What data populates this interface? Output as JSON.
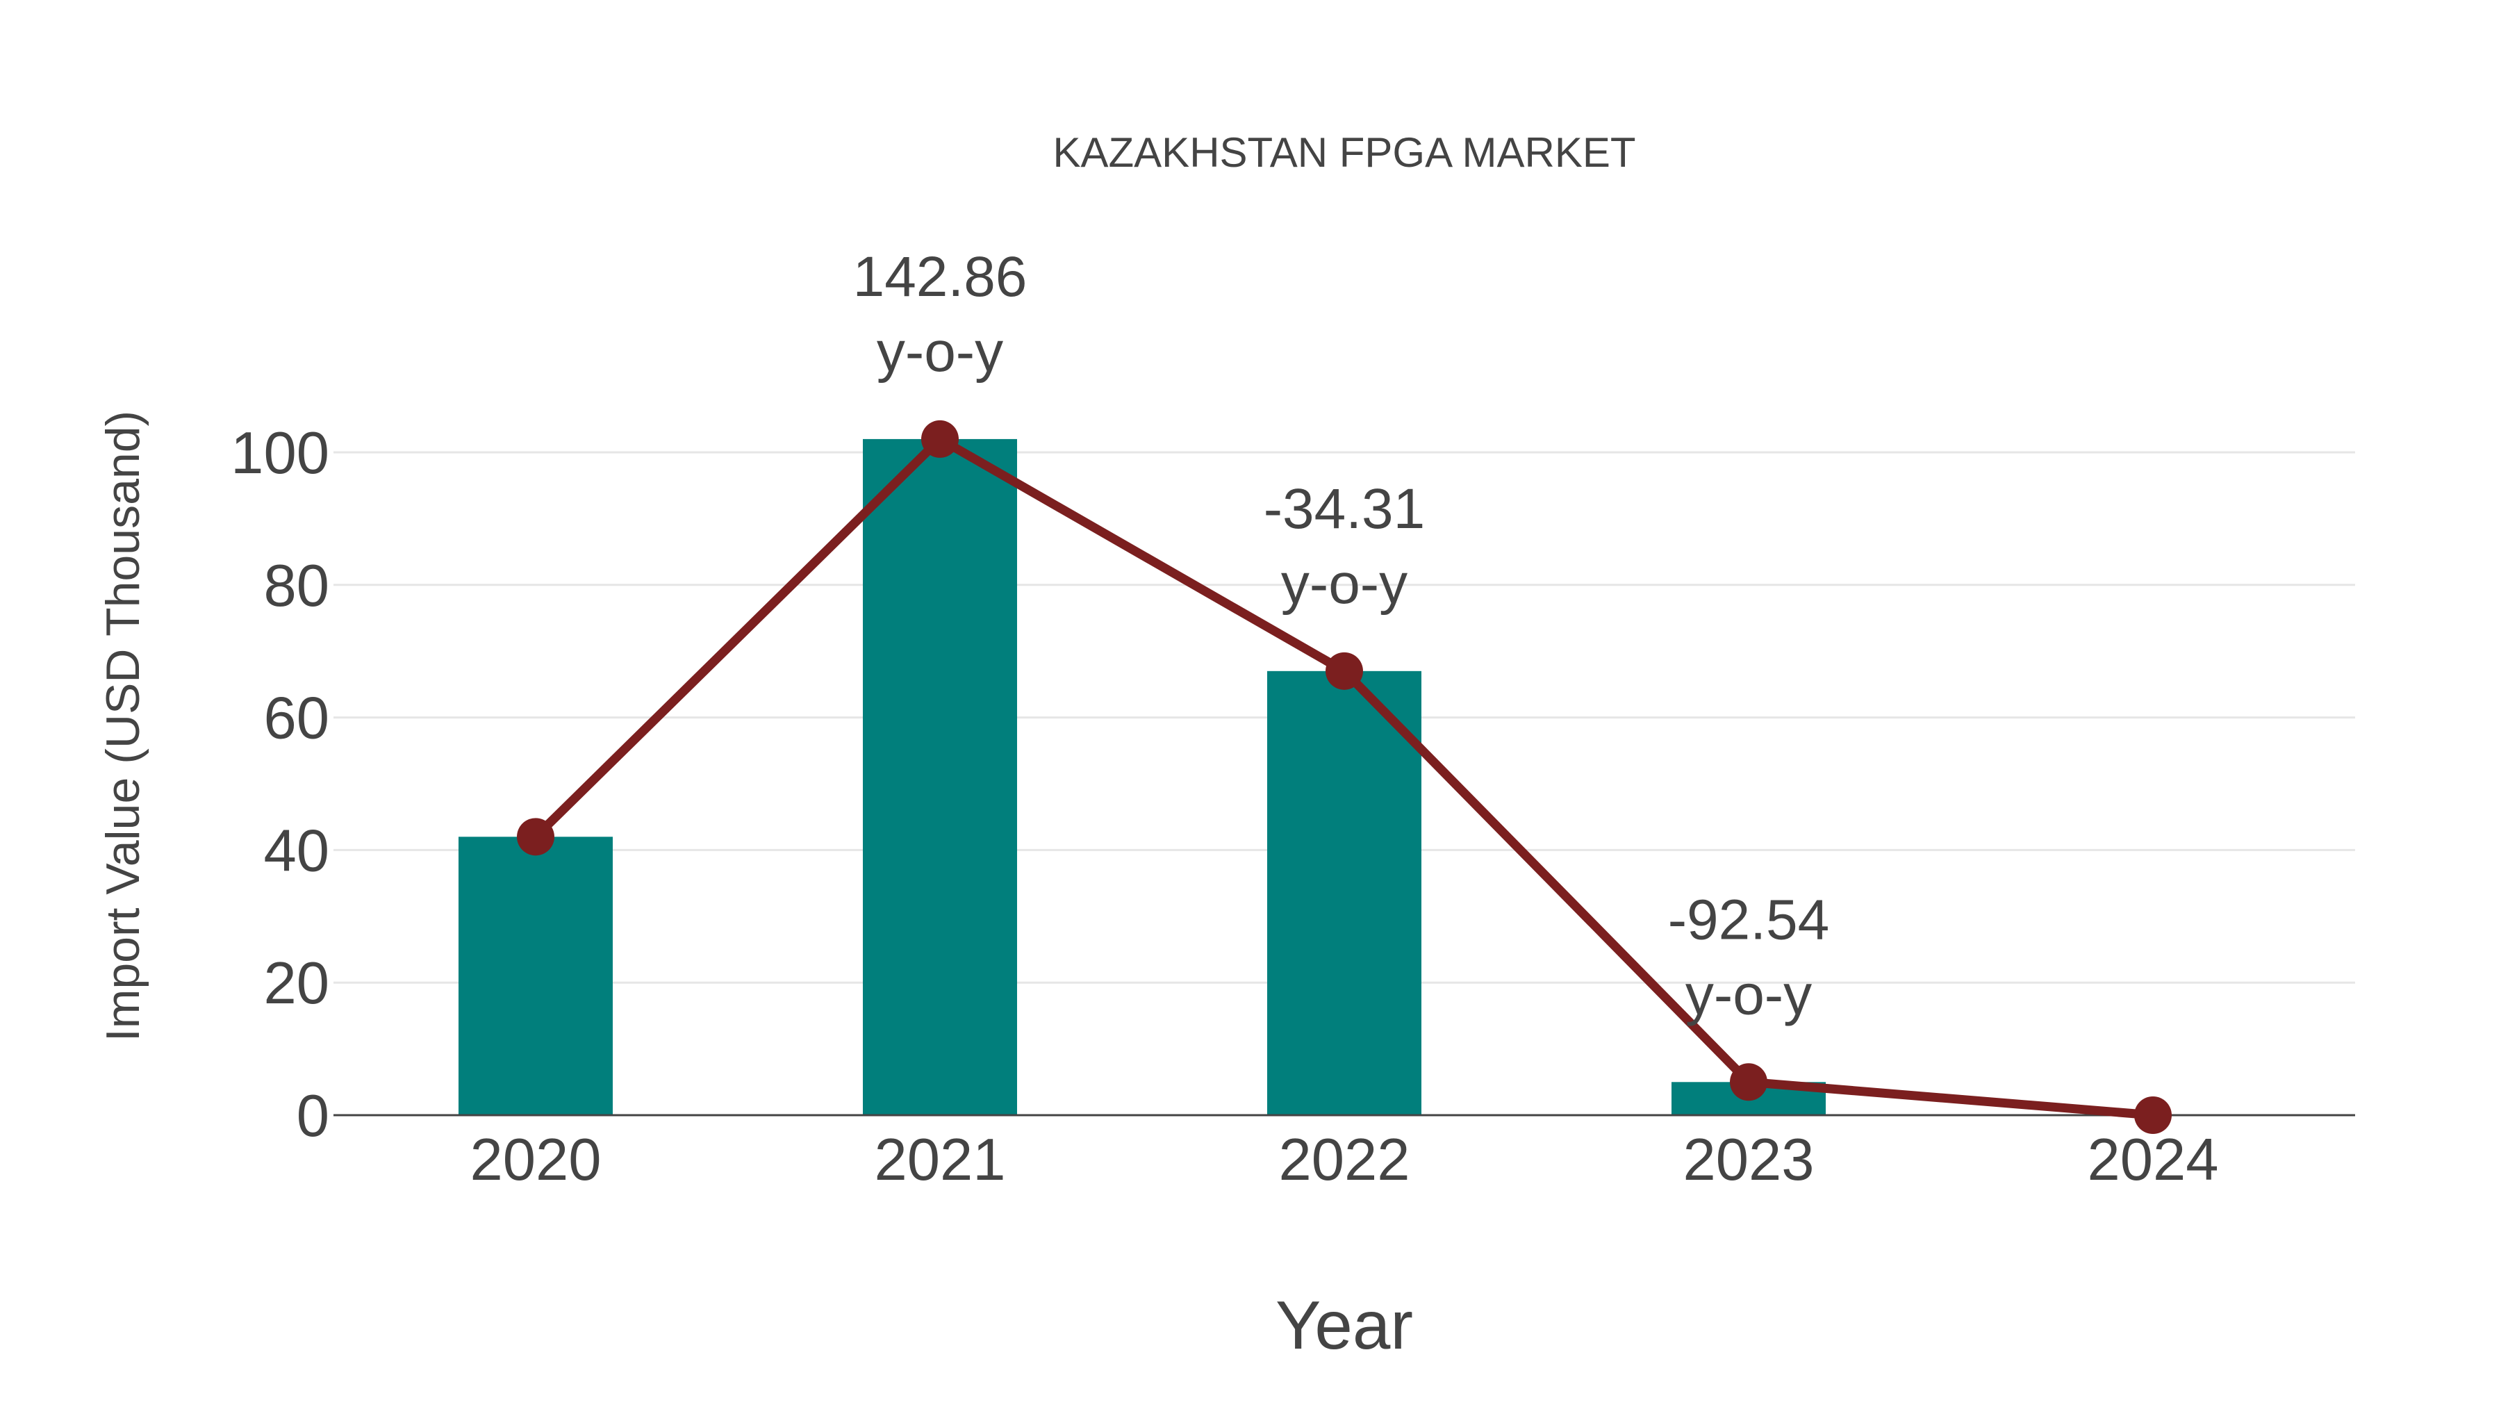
{
  "chart_data": {
    "type": "bar",
    "title": "KAZAKHSTAN FPGA MARKET",
    "xlabel": "Year",
    "ylabel": "Import Value (USD Thousand)",
    "categories": [
      "2020",
      "2021",
      "2022",
      "2023",
      "2024"
    ],
    "series": [
      {
        "name": "Import Value",
        "type": "bar",
        "color": "#017f7c",
        "values": [
          42,
          102,
          67,
          5,
          0
        ]
      },
      {
        "name": "Trend",
        "type": "line",
        "color": "#7b1f1f",
        "values": [
          42,
          102,
          67,
          5,
          0
        ]
      }
    ],
    "yticks": [
      0,
      20,
      40,
      60,
      80,
      100
    ],
    "ylim": [
      0,
      110
    ],
    "grid": true,
    "legend": "none",
    "annotations": [
      {
        "category": "2021",
        "value": "142.86",
        "suffix": "y-o-y"
      },
      {
        "category": "2022",
        "value": "-34.31",
        "suffix": "y-o-y"
      },
      {
        "category": "2023",
        "value": "-92.54",
        "suffix": "y-o-y"
      }
    ]
  }
}
